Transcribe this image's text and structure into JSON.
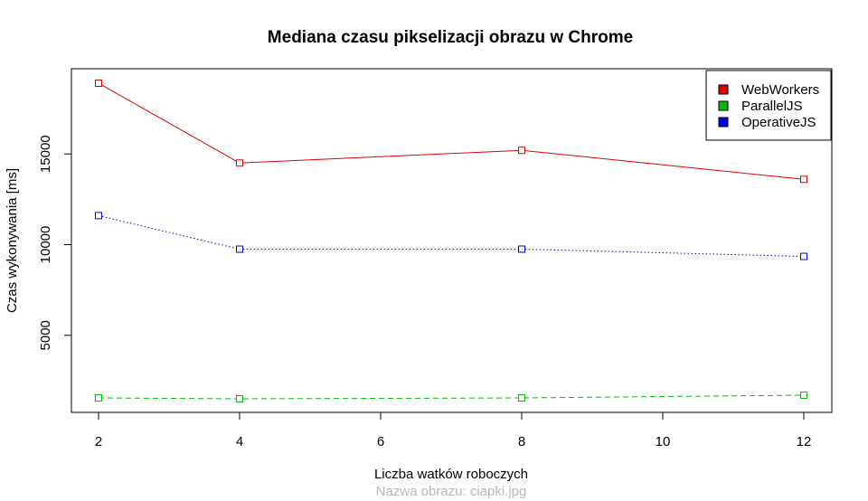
{
  "chart_data": {
    "type": "line",
    "title": "Mediana czasu pikselizacji obrazu w Chrome",
    "xlabel": "Liczba watków roboczych",
    "ylabel": "Czas wykonywania [ms]",
    "caption": "Nazwa obrazu: ciapki.jpg",
    "x": [
      2,
      4,
      8,
      12
    ],
    "xlim": [
      2,
      12
    ],
    "ylim": [
      1500,
      18900
    ],
    "xticks": [
      "2",
      "4",
      "6",
      "8",
      "10",
      "12"
    ],
    "yticks": [
      "5000",
      "10000",
      "15000"
    ],
    "grid": false,
    "legend_position": "top-right",
    "series": [
      {
        "name": "WebWorkers",
        "color": "#dd0000",
        "line_style": "solid",
        "marker": "open-square",
        "values": [
          18900,
          14500,
          15200,
          13600
        ]
      },
      {
        "name": "ParallelJS",
        "color": "#00bb00",
        "line_style": "dashed",
        "marker": "open-square",
        "values": [
          1550,
          1500,
          1550,
          1700
        ]
      },
      {
        "name": "OperativeJS",
        "color": "#0000dd",
        "line_style": "dotted",
        "marker": "open-square",
        "values": [
          11600,
          9750,
          9750,
          9350
        ]
      }
    ]
  }
}
